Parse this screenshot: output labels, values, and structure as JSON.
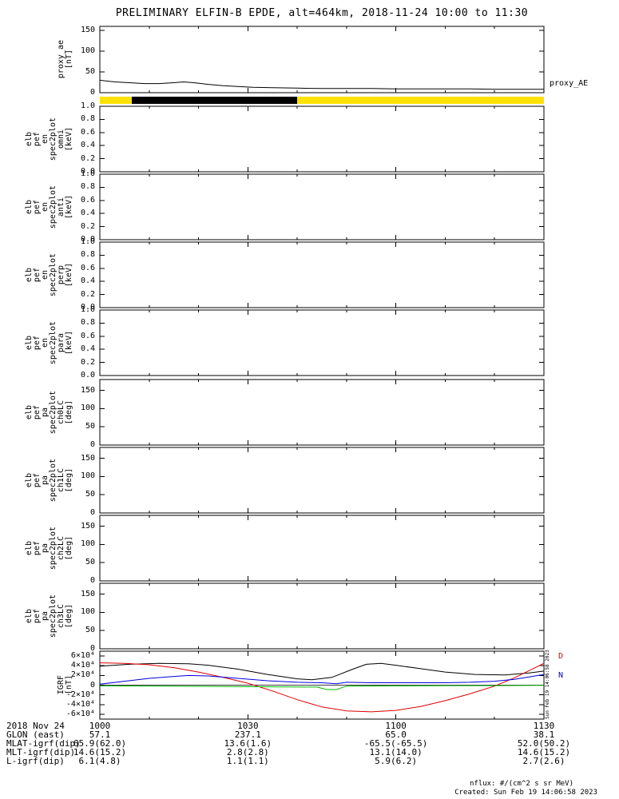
{
  "title": "PRELIMINARY ELFIN-B EPDE, alt=464km, 2018-11-24 10:00 to 11:30",
  "right_label": "proxy_AE",
  "watermark": "Sun Feb 19 14:06:58 2023",
  "footer": {
    "nflux": "nflux: #/(cm^2 s sr MeV)",
    "created": "Created: Sun Feb 19 14:06:58 2023"
  },
  "igrf_labels": {
    "d": "D",
    "n": "N"
  },
  "colors": {
    "bar_yellow": "#ffe100",
    "series_black": "#000000",
    "series_red": "#dd0000",
    "series_blue": "#0000dd",
    "series_green": "#00bb00"
  },
  "xaxis": {
    "min": 0,
    "max": 90,
    "unit": "minutes after 2018-11-24 10:00 UT",
    "minor_step": 10,
    "major": [
      [
        0,
        "1000"
      ],
      [
        30,
        "1030"
      ],
      [
        60,
        "1100"
      ],
      [
        90,
        "1130"
      ]
    ]
  },
  "panels": [
    {
      "key": "proxy_ae",
      "ylabel_words": [
        "proxy_ae",
        "[nT]"
      ],
      "yrange": [
        0,
        160
      ],
      "yticks": [
        [
          0,
          "0"
        ],
        [
          50,
          "50"
        ],
        [
          100,
          "100"
        ],
        [
          150,
          "150"
        ]
      ],
      "chart": 0
    },
    {
      "key": "bar",
      "bar": true,
      "chart": 1
    },
    {
      "key": "omni",
      "ylabel_words": [
        "elb",
        "pef",
        "en",
        "spec2plot",
        "omni",
        "[keV]"
      ],
      "yrange": [
        0,
        1
      ],
      "yticks": [
        [
          0,
          "0.0"
        ],
        [
          0.2,
          "0.2"
        ],
        [
          0.4,
          "0.4"
        ],
        [
          0.6,
          "0.6"
        ],
        [
          0.8,
          "0.8"
        ],
        [
          1,
          "1.0"
        ]
      ],
      "chart": 2
    },
    {
      "key": "anti",
      "ylabel_words": [
        "elb",
        "pef",
        "en",
        "spec2plot",
        "anti",
        "[keV]"
      ],
      "yrange": [
        0,
        1
      ],
      "yticks": [
        [
          0,
          "0.0"
        ],
        [
          0.2,
          "0.2"
        ],
        [
          0.4,
          "0.4"
        ],
        [
          0.6,
          "0.6"
        ],
        [
          0.8,
          "0.8"
        ],
        [
          1,
          "1.0"
        ]
      ],
      "chart": 3
    },
    {
      "key": "perp",
      "ylabel_words": [
        "elb",
        "pef",
        "en",
        "spec2plot",
        "perp",
        "[keV]"
      ],
      "yrange": [
        0,
        1
      ],
      "yticks": [
        [
          0,
          "0.0"
        ],
        [
          0.2,
          "0.2"
        ],
        [
          0.4,
          "0.4"
        ],
        [
          0.6,
          "0.6"
        ],
        [
          0.8,
          "0.8"
        ],
        [
          1,
          "1.0"
        ]
      ],
      "chart": 4
    },
    {
      "key": "para",
      "ylabel_words": [
        "elb",
        "pef",
        "en",
        "spec2plot",
        "para",
        "[keV]"
      ],
      "yrange": [
        0,
        1
      ],
      "yticks": [
        [
          0,
          "0.0"
        ],
        [
          0.2,
          "0.2"
        ],
        [
          0.4,
          "0.4"
        ],
        [
          0.6,
          "0.6"
        ],
        [
          0.8,
          "0.8"
        ],
        [
          1,
          "1.0"
        ]
      ],
      "chart": 5
    },
    {
      "key": "ch0LC",
      "ylabel_words": [
        "elb",
        "pef",
        "pa",
        "spec2plot",
        "ch0LC",
        "[deg]"
      ],
      "yrange": [
        0,
        180
      ],
      "yticks": [
        [
          0,
          "0"
        ],
        [
          50,
          "50"
        ],
        [
          100,
          "100"
        ],
        [
          150,
          "150"
        ]
      ],
      "chart": 6
    },
    {
      "key": "ch1LC",
      "ylabel_words": [
        "elb",
        "pef",
        "pa",
        "spec2plot",
        "ch1LC",
        "[deg]"
      ],
      "yrange": [
        0,
        180
      ],
      "yticks": [
        [
          0,
          "0"
        ],
        [
          50,
          "50"
        ],
        [
          100,
          "100"
        ],
        [
          150,
          "150"
        ]
      ],
      "chart": 7
    },
    {
      "key": "ch2LC",
      "ylabel_words": [
        "elb",
        "pef",
        "pa",
        "spec2plot",
        "ch2LC",
        "[deg]"
      ],
      "yrange": [
        0,
        180
      ],
      "yticks": [
        [
          0,
          "0"
        ],
        [
          50,
          "50"
        ],
        [
          100,
          "100"
        ],
        [
          150,
          "150"
        ]
      ],
      "chart": 8
    },
    {
      "key": "ch3LC",
      "ylabel_words": [
        "elb",
        "pef",
        "pa",
        "spec2plot",
        "ch3LC",
        "[deg]"
      ],
      "yrange": [
        0,
        180
      ],
      "yticks": [
        [
          0,
          "0"
        ],
        [
          50,
          "50"
        ],
        [
          100,
          "100"
        ],
        [
          150,
          "150"
        ]
      ],
      "chart": 9
    },
    {
      "key": "igrf",
      "ylabel_words": [
        "IGRF",
        "[nT]"
      ],
      "yrange": [
        -70000,
        70000
      ],
      "yticks": [
        [
          -60000,
          "-6×10⁴"
        ],
        [
          -40000,
          "-4×10⁴"
        ],
        [
          -20000,
          "-2×10⁴"
        ],
        [
          0,
          "0"
        ],
        [
          20000,
          "2×10⁴"
        ],
        [
          40000,
          "4×10⁴"
        ],
        [
          60000,
          "6×10⁴"
        ]
      ],
      "chart": 10,
      "zero_line": true
    }
  ],
  "bottom_table": {
    "rows": [
      {
        "label": "2018 Nov 24",
        "values": [
          "1000",
          "1030",
          "1100",
          "1130"
        ]
      },
      {
        "label": "GLON (east)",
        "values": [
          "57.1",
          "237.1",
          "65.0",
          "38.1"
        ]
      },
      {
        "label": "MLAT-igrf(dip)",
        "values": [
          "65.9(62.0)",
          "13.6(1.6)",
          "-65.5(-65.5)",
          "52.0(50.2)"
        ]
      },
      {
        "label": "MLT-igrf(dip)",
        "values": [
          "14.6(15.2)",
          "2.8(2.8)",
          "13.1(14.0)",
          "14.6(15.2)"
        ]
      },
      {
        "label": "L-igrf(dip)",
        "values": [
          "6.1(4.8)",
          "1.1(1.1)",
          "5.9(6.2)",
          "2.7(2.6)"
        ]
      }
    ]
  },
  "chart_data": [
    {
      "type": "line",
      "title": "proxy_ae",
      "ylabel": "proxy_ae [nT]",
      "ylim": [
        0,
        160
      ],
      "xlim": [
        0,
        90
      ],
      "series": [
        {
          "name": "proxy_AE",
          "color": "#000000",
          "points": [
            [
              0,
              30
            ],
            [
              3,
              26
            ],
            [
              6,
              24
            ],
            [
              9,
              22
            ],
            [
              12,
              22
            ],
            [
              15,
              24
            ],
            [
              17,
              26
            ],
            [
              19,
              24
            ],
            [
              22,
              20
            ],
            [
              25,
              17
            ],
            [
              28,
              15
            ],
            [
              31,
              13
            ],
            [
              35,
              12
            ],
            [
              40,
              11
            ],
            [
              45,
              10
            ],
            [
              50,
              10
            ],
            [
              55,
              10
            ],
            [
              60,
              9
            ],
            [
              65,
              9
            ],
            [
              70,
              9
            ],
            [
              75,
              9
            ],
            [
              80,
              8
            ],
            [
              85,
              8
            ],
            [
              90,
              8
            ]
          ]
        }
      ]
    },
    {
      "type": "area",
      "title": "data availability bar",
      "xlim": [
        0,
        90
      ],
      "segments": [
        {
          "x0": 0,
          "x1": 90,
          "color": "#ffe100"
        },
        {
          "x0": 6.5,
          "x1": 40,
          "color": "#000000"
        }
      ]
    },
    {
      "type": "heatmap",
      "title": "elb pef en spec2plot omni",
      "ylabel": "[keV]",
      "ylim": [
        0,
        1.0
      ],
      "xlim": [
        0,
        90
      ],
      "values": []
    },
    {
      "type": "heatmap",
      "title": "elb pef en spec2plot anti",
      "ylabel": "[keV]",
      "ylim": [
        0,
        1.0
      ],
      "xlim": [
        0,
        90
      ],
      "values": []
    },
    {
      "type": "heatmap",
      "title": "elb pef en spec2plot perp",
      "ylabel": "[keV]",
      "ylim": [
        0,
        1.0
      ],
      "xlim": [
        0,
        90
      ],
      "values": []
    },
    {
      "type": "heatmap",
      "title": "elb pef en spec2plot para",
      "ylabel": "[keV]",
      "ylim": [
        0,
        1.0
      ],
      "xlim": [
        0,
        90
      ],
      "values": []
    },
    {
      "type": "heatmap",
      "title": "elb pef pa spec2plot ch0LC",
      "ylabel": "[deg]",
      "ylim": [
        0,
        180
      ],
      "xlim": [
        0,
        90
      ],
      "values": []
    },
    {
      "type": "heatmap",
      "title": "elb pef pa spec2plot ch1LC",
      "ylabel": "[deg]",
      "ylim": [
        0,
        180
      ],
      "xlim": [
        0,
        90
      ],
      "values": []
    },
    {
      "type": "heatmap",
      "title": "elb pef pa spec2plot ch2LC",
      "ylabel": "[deg]",
      "ylim": [
        0,
        180
      ],
      "xlim": [
        0,
        90
      ],
      "values": []
    },
    {
      "type": "heatmap",
      "title": "elb pef pa spec2plot ch3LC",
      "ylabel": "[deg]",
      "ylim": [
        0,
        180
      ],
      "xlim": [
        0,
        90
      ],
      "values": []
    },
    {
      "type": "line",
      "title": "IGRF",
      "ylabel": "IGRF [nT]",
      "ylim": [
        -70000,
        70000
      ],
      "xlim": [
        0,
        90
      ],
      "series": [
        {
          "name": "component-black",
          "color": "#000000",
          "points": [
            [
              0,
              39000
            ],
            [
              6,
              43000
            ],
            [
              12,
              45000
            ],
            [
              18,
              44000
            ],
            [
              22,
              41000
            ],
            [
              28,
              33000
            ],
            [
              34,
              22000
            ],
            [
              40,
              13000
            ],
            [
              43,
              11000
            ],
            [
              47,
              16000
            ],
            [
              51,
              32000
            ],
            [
              54,
              43000
            ],
            [
              57,
              45000
            ],
            [
              60,
              41000
            ],
            [
              65,
              34000
            ],
            [
              70,
              27000
            ],
            [
              76,
              22000
            ],
            [
              82,
              21000
            ],
            [
              87,
              25000
            ],
            [
              90,
              29000
            ]
          ]
        },
        {
          "name": "D",
          "color": "#dd0000",
          "points": [
            [
              0,
              46000
            ],
            [
              5,
              45000
            ],
            [
              10,
              42000
            ],
            [
              15,
              36000
            ],
            [
              20,
              27000
            ],
            [
              25,
              16000
            ],
            [
              30,
              4000
            ],
            [
              35,
              -12000
            ],
            [
              40,
              -30000
            ],
            [
              45,
              -45000
            ],
            [
              50,
              -53000
            ],
            [
              55,
              -55000
            ],
            [
              60,
              -52000
            ],
            [
              65,
              -44000
            ],
            [
              70,
              -32000
            ],
            [
              75,
              -18000
            ],
            [
              80,
              -2000
            ],
            [
              84,
              15000
            ],
            [
              87,
              30000
            ],
            [
              90,
              45000
            ]
          ]
        },
        {
          "name": "N",
          "color": "#0000dd",
          "points": [
            [
              0,
              2000
            ],
            [
              5,
              8000
            ],
            [
              10,
              14000
            ],
            [
              15,
              18000
            ],
            [
              18,
              20000
            ],
            [
              22,
              19000
            ],
            [
              28,
              14000
            ],
            [
              34,
              9000
            ],
            [
              40,
              6000
            ],
            [
              45,
              5000
            ],
            [
              48,
              3000
            ],
            [
              50,
              6000
            ],
            [
              55,
              5000
            ],
            [
              60,
              5000
            ],
            [
              65,
              5000
            ],
            [
              70,
              5000
            ],
            [
              75,
              6000
            ],
            [
              80,
              8000
            ],
            [
              84,
              12000
            ],
            [
              87,
              17000
            ],
            [
              90,
              22000
            ]
          ]
        },
        {
          "name": "component-green",
          "color": "#00bb00",
          "points": [
            [
              0,
              -1500
            ],
            [
              20,
              -2500
            ],
            [
              35,
              -3500
            ],
            [
              44,
              -4000
            ],
            [
              46,
              -9000
            ],
            [
              48,
              -9000
            ],
            [
              50,
              -2000
            ],
            [
              60,
              -1500
            ],
            [
              70,
              -1000
            ],
            [
              80,
              -1000
            ],
            [
              90,
              -500
            ]
          ]
        }
      ]
    }
  ]
}
